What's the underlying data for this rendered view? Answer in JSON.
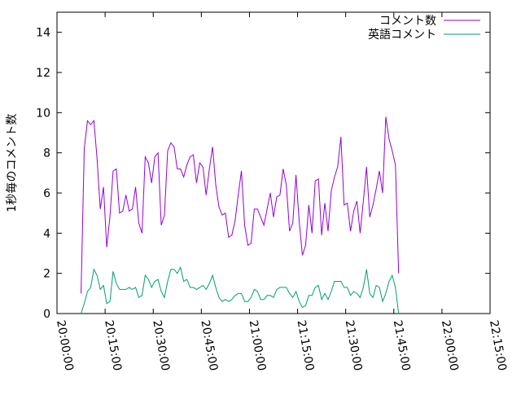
{
  "chart_data": {
    "type": "line",
    "title": "",
    "xlabel": "",
    "ylabel": "1秒毎のコメント数",
    "xlim": [
      "20:00:00",
      "22:15:00"
    ],
    "ylim": [
      0,
      15
    ],
    "x_ticks": [
      "20:00:00",
      "20:15:00",
      "20:30:00",
      "20:45:00",
      "21:00:00",
      "21:15:00",
      "21:30:00",
      "21:45:00",
      "22:00:00",
      "22:15:00"
    ],
    "y_ticks": [
      "0",
      "2",
      "4",
      "6",
      "8",
      "10",
      "12",
      "14"
    ],
    "grid": false,
    "legend_position": "top-right",
    "x_start": "20:07:30",
    "x_step_seconds": 60,
    "series": [
      {
        "name": "コメント数",
        "color": "#9400d3",
        "values": [
          1.0,
          8.2,
          9.6,
          9.4,
          9.6,
          7.7,
          5.2,
          6.3,
          3.3,
          4.8,
          7.1,
          7.2,
          5.0,
          5.1,
          5.9,
          5.1,
          5.2,
          6.3,
          4.5,
          4.0,
          7.8,
          7.5,
          6.5,
          7.8,
          8.0,
          4.4,
          4.9,
          8.1,
          8.5,
          8.3,
          7.2,
          7.2,
          6.8,
          7.4,
          7.8,
          7.9,
          6.5,
          7.5,
          7.3,
          5.9,
          7.2,
          8.3,
          6.4,
          5.3,
          4.9,
          5.0,
          3.8,
          3.9,
          4.6,
          5.9,
          7.1,
          4.4,
          3.4,
          3.5,
          5.2,
          5.2,
          4.8,
          4.4,
          5.2,
          6.0,
          4.8,
          5.8,
          5.9,
          7.2,
          6.4,
          4.1,
          4.5,
          6.9,
          4.6,
          2.9,
          3.4,
          5.4,
          4.0,
          6.6,
          6.7,
          3.9,
          5.5,
          4.1,
          6.1,
          6.8,
          7.3,
          8.8,
          5.4,
          5.5,
          4.1,
          5.1,
          5.6,
          4.0,
          5.6,
          7.3,
          4.8,
          5.4,
          6.2,
          7.1,
          6.0,
          9.8,
          8.7,
          8.1,
          7.4,
          2.0
        ]
      },
      {
        "name": "英語コメント",
        "color": "#009e73",
        "values": [
          0.0,
          0.5,
          1.1,
          1.3,
          2.2,
          1.9,
          1.2,
          1.4,
          0.5,
          0.6,
          2.1,
          1.5,
          1.2,
          1.2,
          1.2,
          1.3,
          1.2,
          1.3,
          0.8,
          0.9,
          1.9,
          1.7,
          1.3,
          1.6,
          1.7,
          1.1,
          0.8,
          1.6,
          2.2,
          2.2,
          2.0,
          2.3,
          1.6,
          1.7,
          1.3,
          1.3,
          1.2,
          1.3,
          1.4,
          1.2,
          1.5,
          1.9,
          1.3,
          0.8,
          0.6,
          0.7,
          0.6,
          0.7,
          0.9,
          1.0,
          1.0,
          0.6,
          0.6,
          0.8,
          1.2,
          1.1,
          0.7,
          0.7,
          0.9,
          0.9,
          0.8,
          1.2,
          1.3,
          1.3,
          1.3,
          1.0,
          0.8,
          1.1,
          0.6,
          0.3,
          0.4,
          0.9,
          0.9,
          1.3,
          1.4,
          0.7,
          1.0,
          0.7,
          1.1,
          1.6,
          1.6,
          1.6,
          1.3,
          1.3,
          0.9,
          1.1,
          1.0,
          0.8,
          1.3,
          2.2,
          1.0,
          0.8,
          1.4,
          1.3,
          0.6,
          1.0,
          1.6,
          1.9,
          1.3,
          0.0
        ]
      }
    ]
  }
}
